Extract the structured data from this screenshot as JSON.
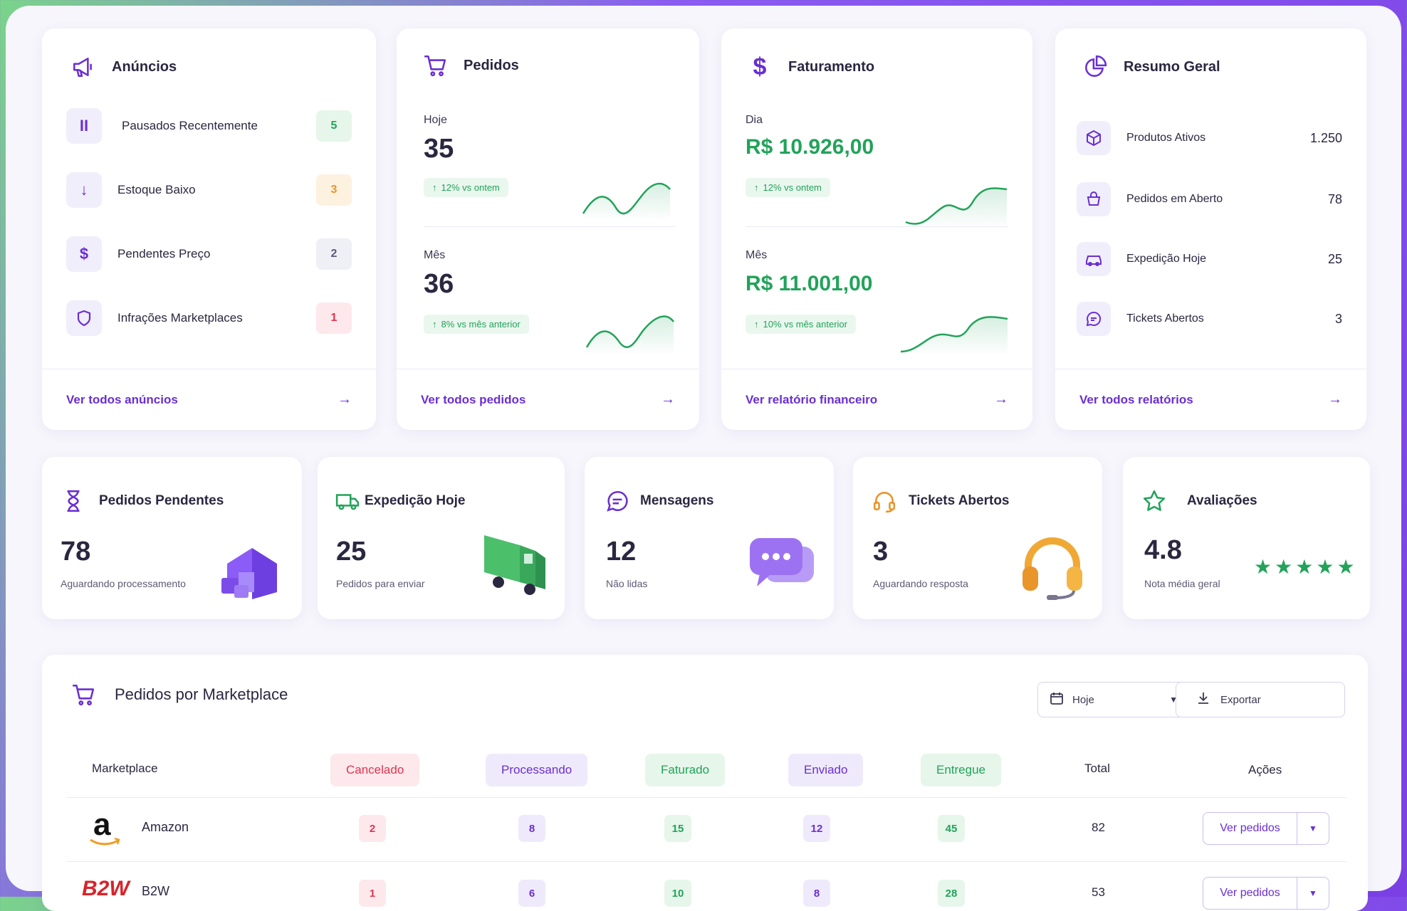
{
  "anuncios": {
    "title": "Anúncios",
    "items": [
      {
        "label": "Pausados Recentemente",
        "count": "5",
        "icon": "pause-icon"
      },
      {
        "label": "Estoque Baixo",
        "count": "3",
        "icon": "arrow-down-icon"
      },
      {
        "label": "Pendentes Preço",
        "count": "2",
        "icon": "dollar-icon"
      },
      {
        "label": "Infrações Marketplaces",
        "count": "1",
        "icon": "shield-icon"
      }
    ],
    "link": "Ver todos anúncios"
  },
  "pedidos": {
    "title": "Pedidos",
    "today_label": "Hoje",
    "today_value": "35",
    "today_change": "12% vs ontem",
    "month_label": "Mês",
    "month_value": "36",
    "month_change": "8% vs mês anterior",
    "link": "Ver todos pedidos"
  },
  "faturamento": {
    "title": "Faturamento",
    "day_label": "Dia",
    "day_value": "R$ 10.926,00",
    "day_change": "12% vs ontem",
    "month_label": "Mês",
    "month_value": "R$ 11.001,00",
    "month_change": "10% vs mês anterior",
    "link": "Ver relatório financeiro"
  },
  "resumo": {
    "title": "Resumo Geral",
    "items": [
      {
        "label": "Produtos Ativos",
        "value": "1.250",
        "icon": "box-icon"
      },
      {
        "label": "Pedidos em Aberto",
        "value": "78",
        "icon": "basket-icon"
      },
      {
        "label": "Expedição Hoje",
        "value": "25",
        "icon": "car-icon"
      },
      {
        "label": "Tickets Abertos",
        "value": "3",
        "icon": "chat-icon"
      }
    ],
    "link": "Ver todos relatórios"
  },
  "stats": [
    {
      "title": "Pedidos Pendentes",
      "value": "78",
      "sub": "Aguardando processamento",
      "icon": "hourglass-icon"
    },
    {
      "title": "Expedição Hoje",
      "value": "25",
      "sub": "Pedidos para enviar",
      "icon": "truck-icon"
    },
    {
      "title": "Mensagens",
      "value": "12",
      "sub": "Não lidas",
      "icon": "message-icon"
    },
    {
      "title": "Tickets Abertos",
      "value": "3",
      "sub": "Aguardando resposta",
      "icon": "headset-icon"
    },
    {
      "title": "Avaliações",
      "value": "4.8",
      "sub": "Nota média geral",
      "icon": "star-icon",
      "rating": 5
    }
  ],
  "marketplace": {
    "title": "Pedidos por Marketplace",
    "filter_value": "Hoje",
    "export_label": "Exportar",
    "columns": [
      "Marketplace",
      "Cancelado",
      "Processando",
      "Faturado",
      "Enviado",
      "Entregue",
      "Total",
      "Ações"
    ],
    "rows": [
      {
        "name": "Amazon",
        "cancelado": "2",
        "processando": "8",
        "faturado": "15",
        "enviado": "12",
        "entregue": "45",
        "total": "82",
        "action": "Ver pedidos"
      },
      {
        "name": "B2W",
        "cancelado": "1",
        "processando": "6",
        "faturado": "10",
        "enviado": "8",
        "entregue": "28",
        "total": "53",
        "action": "Ver pedidos"
      }
    ]
  },
  "colors": {
    "accent": "#6a2fd1",
    "green": "#22a35a",
    "red": "#e0344f",
    "orange": "#e8952a"
  }
}
